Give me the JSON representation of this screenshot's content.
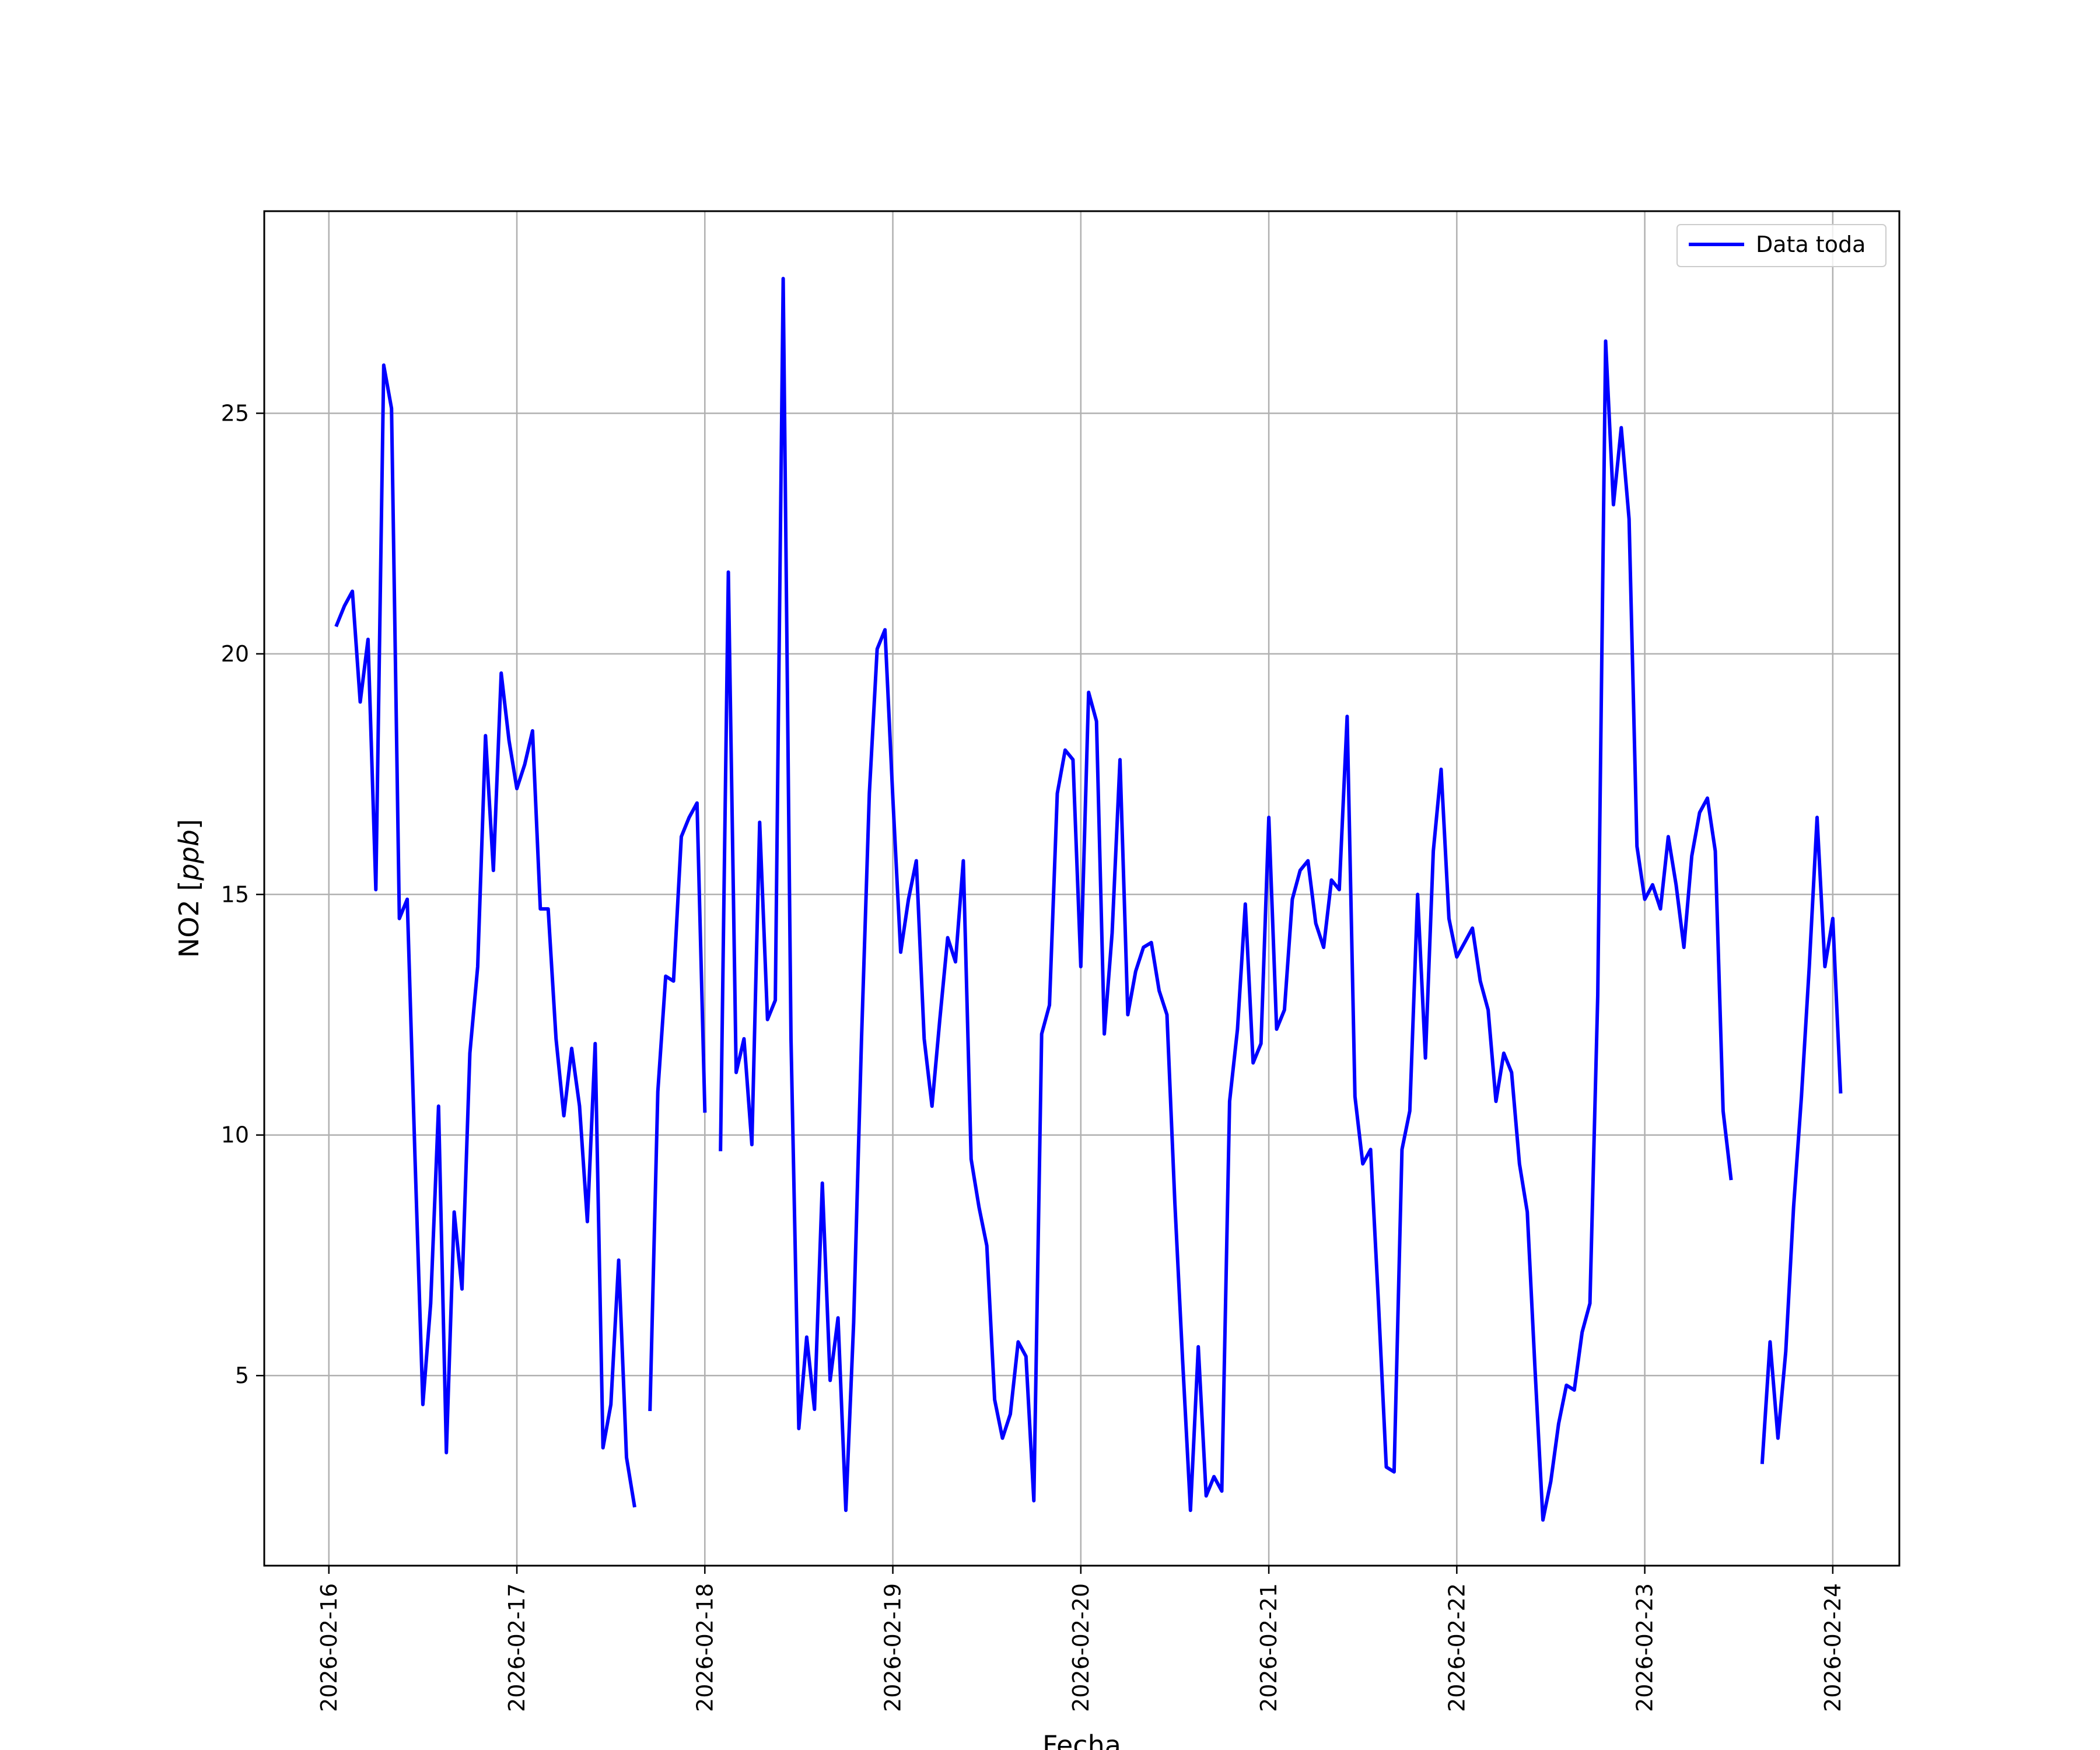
{
  "chart_data": {
    "type": "line",
    "title": "",
    "xlabel": "Fecha",
    "ylabel": "NO2 [ppb]",
    "ylabel_parts": {
      "base": "NO2 [",
      "unit": "ppb",
      "close": "]"
    },
    "xlim": [
      "2026-02-15T15:45",
      "2026-02-24T08:30"
    ],
    "ylim": [
      1.05,
      29.2
    ],
    "x_ticks": [
      "2026-02-16",
      "2026-02-17",
      "2026-02-18",
      "2026-02-19",
      "2026-02-20",
      "2026-02-21",
      "2026-02-22",
      "2026-02-23",
      "2026-02-24"
    ],
    "y_ticks": [
      "5",
      "10",
      "15",
      "20",
      "25"
    ],
    "grid": true,
    "legend_position": "top-right",
    "series": [
      {
        "name": "Data toda",
        "color": "#0000ff",
        "x_start": "2026-02-16T01:00",
        "x_step_hours": 1,
        "values": [
          20.6,
          21.0,
          21.3,
          19.0,
          20.3,
          15.1,
          26.0,
          25.1,
          14.5,
          14.9,
          9.5,
          4.4,
          6.5,
          10.6,
          3.4,
          8.4,
          6.8,
          11.7,
          13.5,
          18.3,
          15.5,
          19.6,
          18.2,
          17.2,
          17.7,
          18.4,
          14.7,
          14.7,
          12.0,
          10.4,
          11.8,
          10.6,
          8.2,
          11.9,
          3.5,
          4.4,
          7.4,
          3.3,
          2.3,
          null,
          4.3,
          10.9,
          13.3,
          13.2,
          16.2,
          16.6,
          16.9,
          10.5,
          null,
          9.7,
          21.7,
          11.3,
          12.0,
          9.8,
          16.5,
          12.4,
          12.8,
          27.8,
          12.0,
          3.9,
          5.8,
          4.3,
          9.0,
          4.9,
          6.2,
          2.2,
          6.1,
          12.0,
          17.1,
          20.1,
          20.5,
          17.0,
          13.8,
          14.9,
          15.7,
          12.0,
          10.6,
          12.4,
          14.1,
          13.6,
          15.7,
          9.5,
          8.5,
          7.7,
          4.5,
          3.7,
          4.2,
          5.7,
          5.4,
          2.4,
          12.1,
          12.7,
          17.1,
          18.0,
          17.8,
          13.5,
          19.2,
          18.6,
          12.1,
          14.2,
          17.8,
          12.5,
          13.4,
          13.9,
          14.0,
          13.0,
          12.5,
          8.6,
          5.3,
          2.2,
          5.6,
          2.5,
          2.9,
          2.6,
          10.7,
          12.2,
          14.8,
          11.5,
          11.9,
          16.6,
          12.2,
          12.6,
          14.9,
          15.5,
          15.7,
          14.4,
          13.9,
          15.3,
          15.1,
          18.7,
          10.8,
          9.4,
          9.7,
          6.5,
          3.1,
          3.0,
          9.7,
          10.5,
          15.0,
          11.6,
          15.9,
          17.6,
          14.5,
          13.7,
          14.0,
          14.3,
          13.2,
          12.6,
          10.7,
          11.7,
          11.3,
          9.4,
          8.4,
          5.1,
          2.0,
          2.8,
          4.0,
          4.8,
          4.7,
          5.9,
          6.5,
          12.9,
          26.5,
          23.1,
          24.7,
          22.8,
          16.0,
          14.9,
          15.2,
          14.7,
          16.2,
          15.2,
          13.9,
          15.8,
          16.7,
          17.0,
          15.9,
          10.5,
          9.1,
          null,
          null,
          null,
          3.2,
          5.7,
          3.7,
          5.5,
          8.5,
          10.8,
          13.5,
          16.6,
          13.5,
          14.5,
          10.9
        ]
      }
    ]
  }
}
